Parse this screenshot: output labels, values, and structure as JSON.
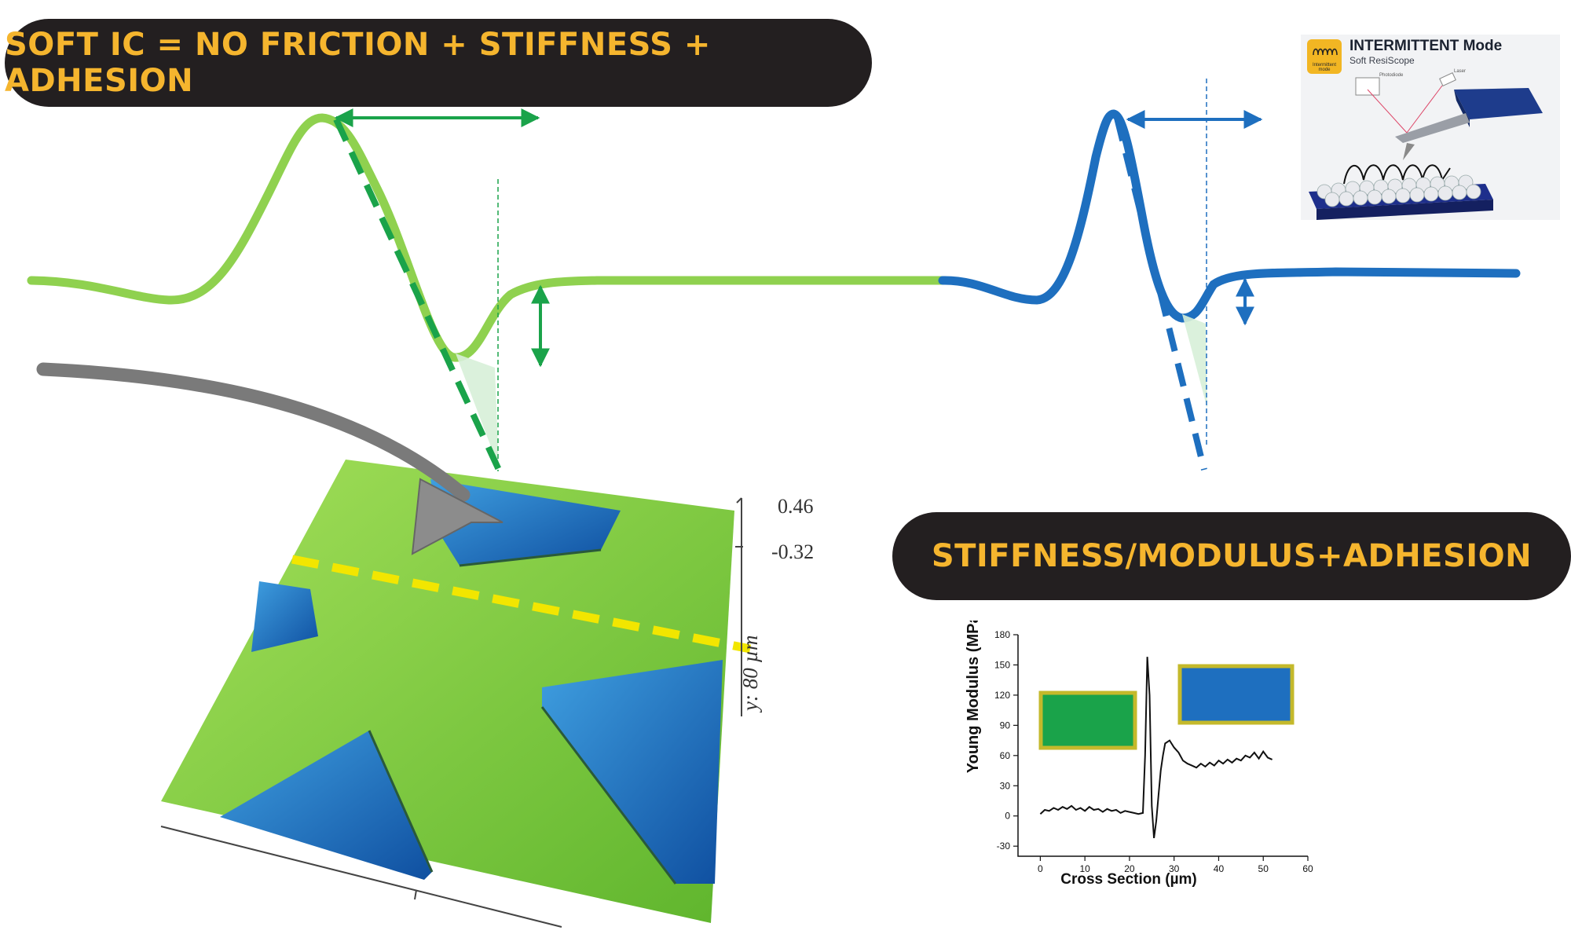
{
  "headline_left": "SOFT IC = NO FRICTION + STIFFNESS + ADHESION",
  "headline_right": "STIFFNESS/MODULUS+ADHESION",
  "afm": {
    "z_top": "0.46",
    "z_bottom": "-0.32",
    "y_axis_label": "y: 80 µm"
  },
  "inset": {
    "title": "INTERMITTENT Mode",
    "subtitle": "Soft ResiScope",
    "logo_text": "Intermittent mode",
    "photodiode_label": "Photodiode",
    "laser_label": "Laser"
  },
  "colors": {
    "green_curve": "#8fd14f",
    "green_dash": "#1aa34a",
    "blue_curve": "#1e6fbf",
    "pill_bg": "#231f20",
    "pill_text": "#f5b52e",
    "yellow_dash": "#f2e600"
  },
  "chart_data": {
    "type": "line",
    "xlabel": "Cross Section (µm)",
    "ylabel": "Young Modulus (MPa)",
    "xlim": [
      -5,
      60
    ],
    "ylim": [
      -40,
      180
    ],
    "xticks": [
      0,
      10,
      20,
      30,
      40,
      50,
      60
    ],
    "yticks": [
      -30,
      0,
      30,
      60,
      90,
      120,
      150,
      180
    ],
    "series": [
      {
        "x": [
          0,
          1,
          2,
          3,
          4,
          5,
          6,
          7,
          8,
          9,
          10,
          11,
          12,
          13,
          14,
          15,
          16,
          17,
          18,
          19,
          20,
          21,
          22,
          23,
          23.5,
          24,
          24.5,
          25,
          25.5,
          26,
          26.5,
          27,
          27.5,
          28,
          29,
          30,
          31,
          32,
          33,
          34,
          35,
          36,
          37,
          38,
          39,
          40,
          41,
          42,
          43,
          44,
          45,
          46,
          47,
          48,
          49,
          50,
          51,
          52
        ],
        "y": [
          2,
          6,
          5,
          8,
          6,
          9,
          7,
          10,
          6,
          8,
          5,
          9,
          6,
          7,
          4,
          7,
          5,
          6,
          3,
          5,
          4,
          3,
          2,
          3,
          60,
          158,
          120,
          10,
          -22,
          -5,
          20,
          45,
          60,
          72,
          75,
          68,
          63,
          55,
          52,
          50,
          48,
          52,
          49,
          53,
          50,
          55,
          52,
          56,
          53,
          57,
          55,
          60,
          58,
          63,
          57,
          64,
          58,
          56
        ]
      }
    ]
  }
}
